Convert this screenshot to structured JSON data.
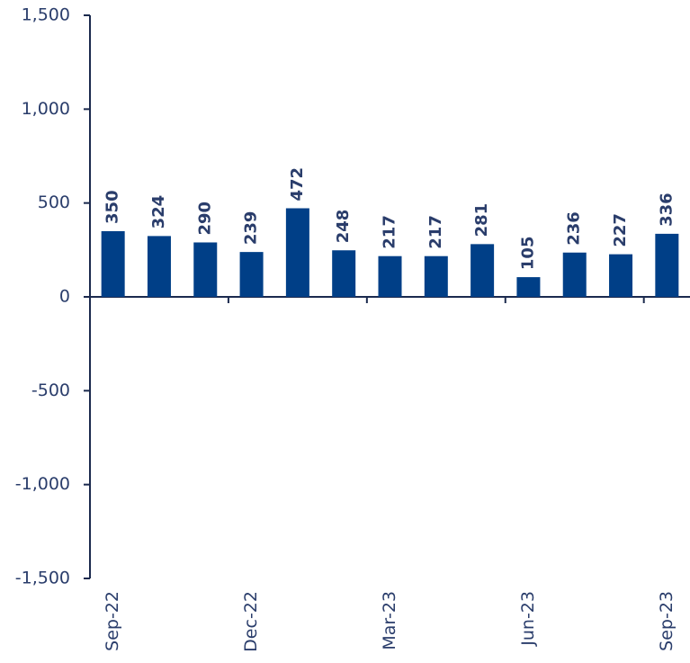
{
  "chart_data": {
    "type": "bar",
    "categories": [
      "Sep-22",
      null,
      null,
      "Dec-22",
      null,
      null,
      "Mar-23",
      null,
      null,
      "Jun-23",
      null,
      null,
      "Sep-23"
    ],
    "values": [
      350,
      324,
      290,
      239,
      472,
      248,
      217,
      217,
      281,
      105,
      236,
      227,
      336
    ],
    "color": "#003f87",
    "ylim": [
      -1500,
      1500
    ],
    "yticks": [
      {
        "value": -1500,
        "label": "-1,500"
      },
      {
        "value": -1000,
        "label": "-1,000"
      },
      -500,
      0,
      500,
      {
        "value": 1000,
        "label": "1,000"
      },
      {
        "value": 1500,
        "label": "1,500"
      }
    ],
    "grid": false
  }
}
